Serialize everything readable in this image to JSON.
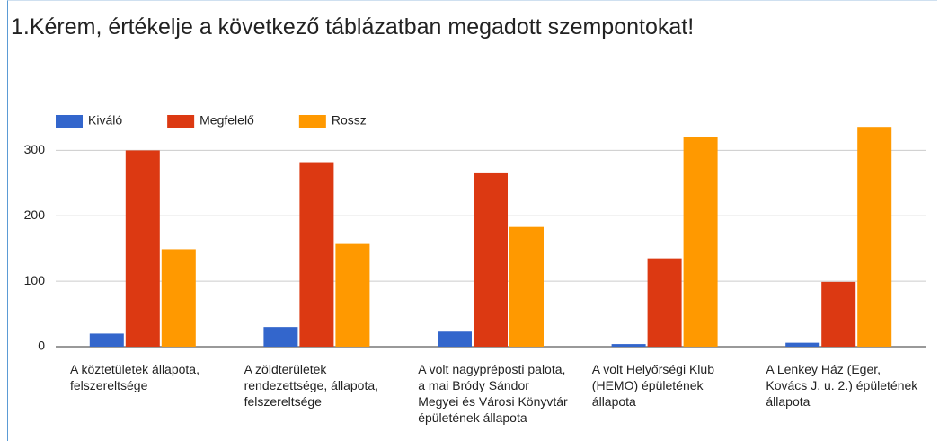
{
  "chart_data": {
    "type": "bar",
    "title": "1.Kérem, értékelje a következő táblázatban megadott szempontokat!",
    "categories": [
      "A köztetületek állapota, felszereltsége",
      "A zöldterületek rendezettsége, állapota, felszereltsége",
      "A volt nagypréposti palota, a mai Bródy Sándor Megyei és Városi Könyvtár épületének állapota",
      "A volt Helyőrségi Klub (HEMO) épületének állapota",
      "A Lenkey Ház (Eger, Kovács J. u. 2.) épületének állapota"
    ],
    "series": [
      {
        "name": "Kiváló",
        "color": "#3366cc",
        "values": [
          20,
          30,
          23,
          4,
          6
        ]
      },
      {
        "name": "Megfelelő",
        "color": "#dc3912",
        "values": [
          300,
          282,
          265,
          135,
          99
        ]
      },
      {
        "name": "Rossz",
        "color": "#ff9900",
        "values": [
          149,
          157,
          183,
          320,
          336
        ]
      }
    ],
    "ylim": [
      0,
      350
    ],
    "yticks": [
      0,
      100,
      200,
      300
    ],
    "grid": true,
    "legend": "top"
  }
}
